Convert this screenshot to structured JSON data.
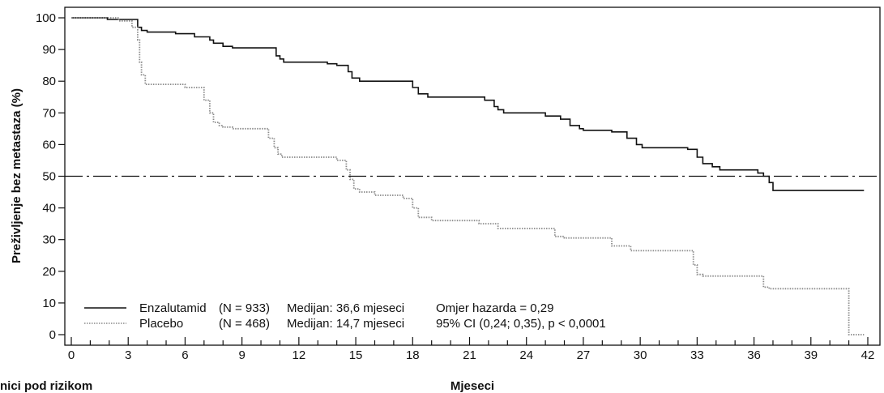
{
  "chart_data": {
    "type": "line",
    "title": "",
    "xlabel": "Mjeseci",
    "ylabel": "Preživljenje bez metastaza (%)",
    "footnote": "nici pod rizikom",
    "xlim": [
      0,
      42
    ],
    "ylim": [
      0,
      100
    ],
    "xticks": [
      0,
      3,
      6,
      9,
      12,
      15,
      18,
      21,
      24,
      27,
      30,
      33,
      36,
      39,
      42
    ],
    "minor_xtick_step": 1,
    "yticks": [
      0,
      10,
      20,
      30,
      40,
      50,
      60,
      70,
      80,
      90,
      100
    ],
    "reference_line": {
      "y": 50,
      "style": "dash-dot"
    },
    "grid": false,
    "legend_position": "bottom-left",
    "series": [
      {
        "name": "Enzalutamid",
        "n": "(N = 933)",
        "median": "Medijan: 36,6 mjeseci",
        "stat": "Omjer hazarda = 0,29",
        "color": "#111111",
        "style": "solid",
        "x": [
          0,
          1.9,
          3.5,
          3.7,
          4.0,
          5.5,
          6.5,
          7.3,
          7.5,
          8.0,
          8.5,
          10.8,
          11.0,
          11.2,
          13.5,
          14.0,
          14.6,
          14.8,
          15.2,
          18.0,
          18.3,
          18.8,
          21.8,
          22.3,
          22.5,
          22.8,
          25.0,
          25.8,
          26.3,
          26.8,
          27.0,
          28.5,
          29.3,
          29.8,
          30.1,
          32.5,
          33.0,
          33.3,
          33.8,
          34.2,
          36.2,
          36.5,
          36.8,
          37.0,
          41.8
        ],
        "y": [
          100,
          99.5,
          97,
          96,
          95.5,
          95,
          94,
          93,
          92,
          91,
          90.5,
          88,
          87,
          86,
          85.5,
          85,
          83,
          81,
          80,
          78,
          76,
          75,
          74,
          72,
          71,
          70,
          69,
          68,
          66,
          65,
          64.5,
          64,
          62,
          60,
          59,
          58.5,
          56,
          54,
          53,
          52,
          51,
          50,
          48,
          45.5,
          45.5
        ]
      },
      {
        "name": "Placebo",
        "n": "(N = 468)",
        "median": "Medijan: 14,7 mjeseci",
        "stat": "95% CI (0,24; 0,35), p < 0,0001",
        "color": "#8a8a8a",
        "style": "dotted",
        "x": [
          0,
          2.5,
          3.2,
          3.5,
          3.6,
          3.7,
          3.9,
          6.0,
          7.0,
          7.3,
          7.5,
          7.8,
          8.0,
          8.5,
          10.4,
          10.7,
          10.9,
          11.1,
          14.0,
          14.5,
          14.7,
          14.9,
          15.2,
          16.0,
          17.5,
          18.0,
          18.3,
          19.0,
          21.5,
          22.5,
          25.5,
          26.0,
          28.5,
          29.5,
          32.8,
          33.0,
          33.3,
          36.5,
          36.8,
          41.0,
          41.2,
          41.8
        ],
        "y": [
          100,
          99,
          97,
          93,
          86,
          82,
          79,
          78,
          74,
          70,
          67,
          66,
          65.5,
          65,
          62,
          59,
          57,
          56,
          55,
          52,
          49,
          46,
          45,
          44,
          43,
          40,
          37,
          36,
          35,
          33.5,
          31,
          30.5,
          28,
          26.5,
          22,
          19,
          18.5,
          15,
          14.5,
          0,
          0,
          0
        ]
      }
    ]
  }
}
